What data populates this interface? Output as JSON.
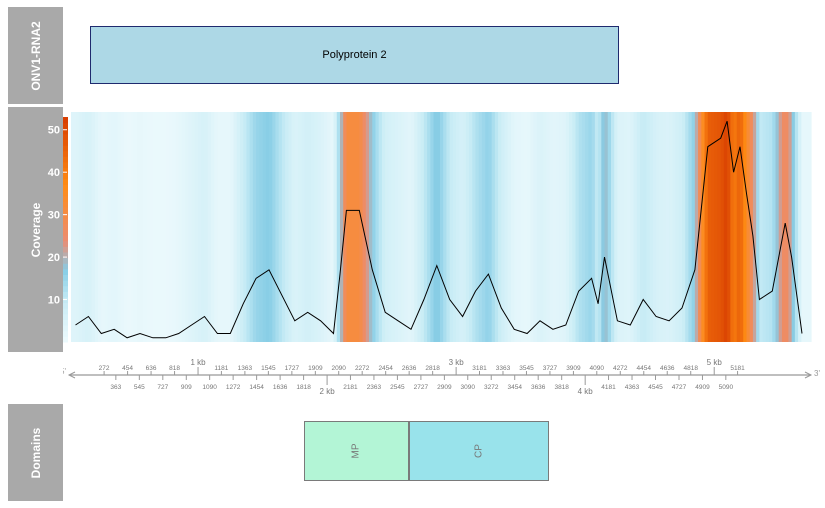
{
  "segment_label": "ONV1-RNA2",
  "coverage_label": "Coverage",
  "domains_label": "Domains",
  "protein": {
    "name": "Polyprotein 2",
    "start": 272,
    "end": 5266,
    "color": "#add8e6"
  },
  "domains": [
    {
      "name": "MP",
      "start": 1818,
      "end": 2636,
      "color": "#b3f5d6"
    },
    {
      "name": "CP",
      "start": 2636,
      "end": 3716,
      "color": "#99e3eb"
    }
  ],
  "chart_data": {
    "type": "line",
    "title": "",
    "xlabel": "",
    "ylabel": "Coverage",
    "xlim": [
      0,
      5750
    ],
    "ylim": [
      0,
      53
    ],
    "yticks": [
      10,
      20,
      30,
      40,
      50
    ],
    "grid": false,
    "line_color": "#000000",
    "heatmap_background": true,
    "x": [
      50,
      150,
      250,
      350,
      450,
      550,
      650,
      750,
      850,
      950,
      1050,
      1150,
      1250,
      1350,
      1450,
      1550,
      1650,
      1750,
      1850,
      1950,
      2050,
      2100,
      2150,
      2250,
      2350,
      2450,
      2550,
      2650,
      2750,
      2850,
      2950,
      3050,
      3150,
      3250,
      3350,
      3450,
      3550,
      3650,
      3750,
      3850,
      3950,
      4050,
      4100,
      4150,
      4250,
      4350,
      4450,
      4550,
      4650,
      4750,
      4850,
      4950,
      5050,
      5100,
      5150,
      5200,
      5250,
      5300,
      5350,
      5450,
      5550,
      5600,
      5680
    ],
    "y": [
      4,
      6,
      2,
      3,
      1,
      2,
      1,
      1,
      2,
      4,
      6,
      2,
      2,
      9,
      15,
      17,
      11,
      5,
      7,
      5,
      2,
      16,
      31,
      31,
      17,
      7,
      5,
      3,
      10,
      18,
      10,
      6,
      12,
      16,
      8,
      3,
      2,
      5,
      3,
      4,
      12,
      15,
      9,
      20,
      5,
      4,
      10,
      6,
      5,
      8,
      17,
      46,
      48,
      52,
      40,
      46,
      35,
      25,
      10,
      12,
      28,
      20,
      2
    ],
    "x_axis_ticks_top": [
      272,
      454,
      636,
      818,
      1000,
      1181,
      1363,
      1545,
      1727,
      1909,
      2090,
      2272,
      2454,
      2636,
      2818,
      3000,
      3181,
      3363,
      3545,
      3727,
      3909,
      4090,
      4272,
      4454,
      4636,
      4818,
      5000,
      5181
    ],
    "x_axis_labels_top": [
      "272",
      "454",
      "636",
      "818",
      "1 kb",
      "1181",
      "1363",
      "1545",
      "1727",
      "1909",
      "2090",
      "2272",
      "2454",
      "2636",
      "2818",
      "3 kb",
      "3181",
      "3363",
      "3545",
      "3727",
      "3909",
      "4090",
      "4272",
      "4454",
      "4636",
      "4818",
      "5 kb",
      "5181"
    ],
    "x_axis_ticks_bottom": [
      363,
      545,
      727,
      909,
      1090,
      1272,
      1454,
      1636,
      1818,
      2000,
      2181,
      2363,
      2545,
      2727,
      2909,
      3090,
      3272,
      3454,
      3636,
      3818,
      4000,
      4181,
      4363,
      4545,
      4727,
      4909,
      5090
    ],
    "x_axis_labels_bottom": [
      "363",
      "545",
      "727",
      "909",
      "1090",
      "1272",
      "1454",
      "1636",
      "1818",
      "2 kb",
      "2181",
      "2363",
      "2545",
      "2727",
      "2909",
      "3090",
      "3272",
      "3454",
      "3636",
      "3818",
      "4 kb",
      "4181",
      "4363",
      "4545",
      "4727",
      "4909",
      "5090"
    ],
    "strand_start": "5'",
    "strand_end": "3'"
  }
}
